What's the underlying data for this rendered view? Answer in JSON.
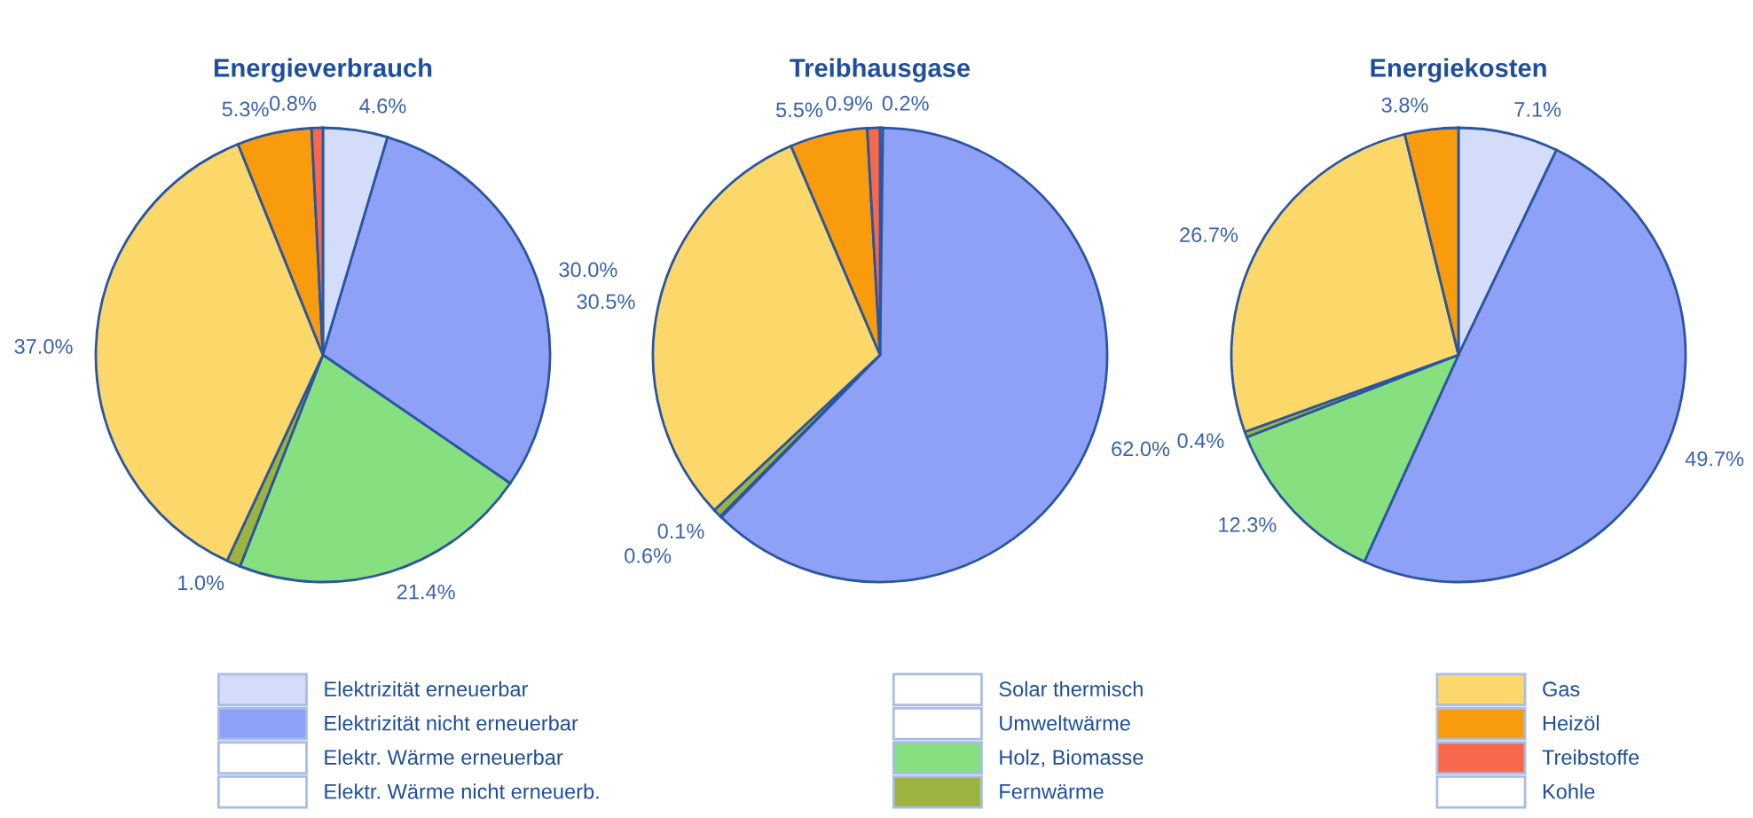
{
  "chart_data": [
    {
      "type": "pie",
      "title": "Energieverbrauch",
      "categories": [
        "Elektrizität erneuerbar",
        "Elektrizität nicht erneuerbar",
        "Elektr. Wärme erneuerbar",
        "Elektr. Wärme nicht erneuerb.",
        "Solar thermisch",
        "Umweltwärme",
        "Holz, Biomasse",
        "Fernwärme",
        "Gas",
        "Heizöl",
        "Treibstoffe",
        "Kohle"
      ],
      "values": [
        4.6,
        30.0,
        null,
        null,
        null,
        null,
        21.4,
        1.0,
        37.0,
        5.3,
        0.8,
        null
      ],
      "value_labels": [
        "4.6%",
        "30.0%",
        null,
        null,
        null,
        null,
        "21.4%",
        "1.0%",
        "37.0%",
        "5.3%",
        "0.8%",
        null
      ],
      "colors": [
        "#d3dcf8",
        "#8fa1f7",
        "#ffffff",
        "#ffffff",
        "#ffffff",
        "#ffffff",
        "#86e07f",
        "#9cb33f",
        "#fcd76a",
        "#f89c0e",
        "#f7694a",
        "#ffffff"
      ],
      "legend": "bottom"
    },
    {
      "type": "pie",
      "title": "Treibhausgase",
      "categories": [
        null,
        null,
        null,
        null,
        null,
        null,
        null,
        null,
        null,
        null,
        null,
        null
      ],
      "values": [
        0.2,
        62.0,
        null,
        null,
        null,
        null,
        0.1,
        0.6,
        30.5,
        5.5,
        0.9,
        null
      ],
      "value_labels": [
        "0.2%",
        "62.0%",
        null,
        null,
        null,
        null,
        "0.1%",
        "0.6%",
        "30.5%",
        "5.5%",
        "0.9%",
        null
      ],
      "colors": [
        "#d3dcf8",
        "#8fa1f7",
        "#ffffff",
        "#ffffff",
        "#ffffff",
        "#ffffff",
        "#86e07f",
        "#9cb33f",
        "#fcd76a",
        "#f89c0e",
        "#f7694a",
        "#ffffff"
      ]
    },
    {
      "type": "pie",
      "title": "Energiekosten",
      "categories": [
        null,
        null,
        null,
        null,
        null,
        null,
        null,
        null,
        null,
        null,
        null,
        null
      ],
      "values": [
        7.1,
        49.7,
        null,
        null,
        null,
        null,
        12.3,
        0.4,
        26.7,
        3.8,
        null,
        null
      ],
      "value_labels": [
        "7.1%",
        "49.7%",
        null,
        null,
        null,
        null,
        "12.3%",
        "0.4%",
        "26.7%",
        "3.8%",
        null,
        null
      ],
      "colors": [
        "#d3dcf8",
        "#8fa1f7",
        "#ffffff",
        "#ffffff",
        "#ffffff",
        "#ffffff",
        "#86e07f",
        "#9cb33f",
        "#fcd76a",
        "#f89c0e",
        "#f7694a",
        "#ffffff"
      ]
    }
  ]
}
